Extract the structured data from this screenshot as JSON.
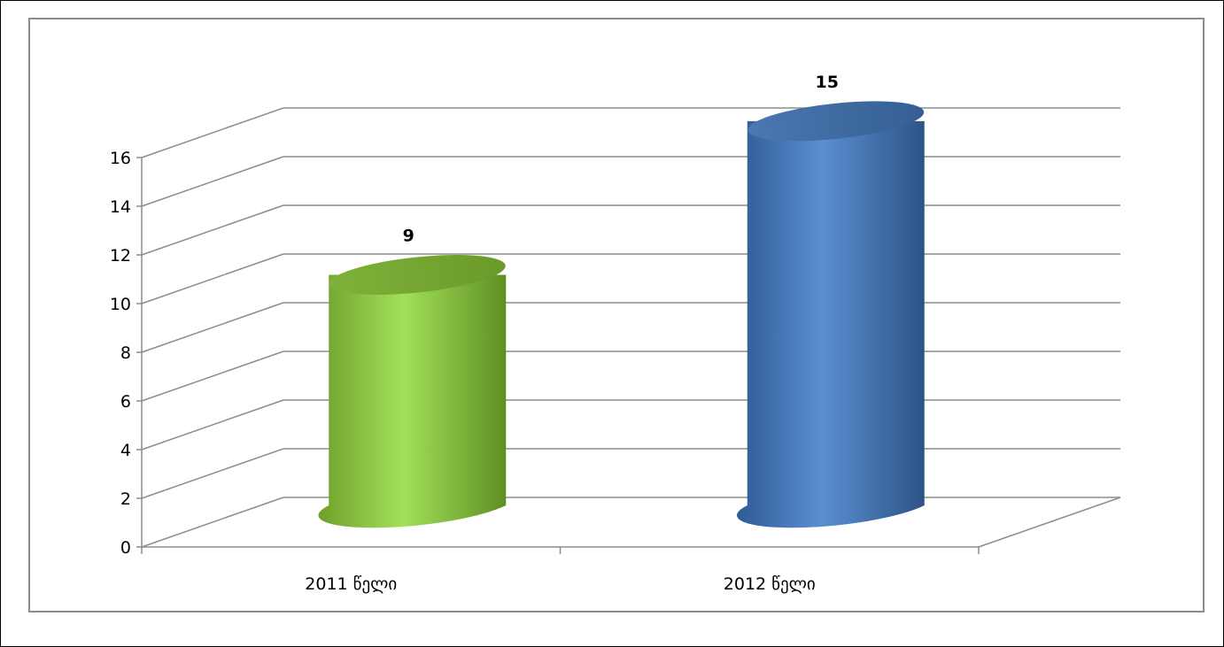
{
  "chart_data": {
    "type": "bar",
    "style": "3d-cylinder",
    "categories": [
      "2011 წელი",
      "2012 წელი"
    ],
    "values": [
      9,
      15
    ],
    "data_labels": [
      "9",
      "15"
    ],
    "colors": [
      "#8cc63f",
      "#4f81bd"
    ],
    "yticks": [
      "0",
      "2",
      "4",
      "6",
      "8",
      "10",
      "12",
      "14",
      "16"
    ],
    "ylim": [
      0,
      16
    ],
    "grid": true,
    "legend": "none"
  }
}
